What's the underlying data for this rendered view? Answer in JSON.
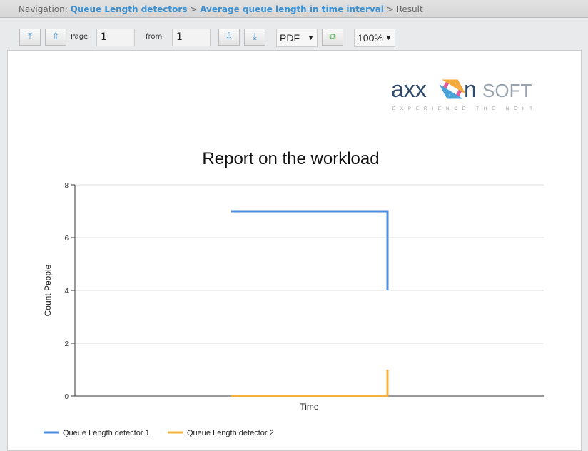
{
  "navigation": {
    "prefix": "Navigation:",
    "crumbs": [
      "Queue Length detectors",
      "Average queue length in time interval"
    ],
    "current": "Result",
    "sep": ">"
  },
  "toolbar": {
    "first_icon": "arrow-to-top-icon",
    "prev_icon": "arrow-up-icon",
    "page_label": "Page",
    "page_value": "1",
    "from_label": "from",
    "from_value": "1",
    "next_icon": "arrow-down-icon",
    "last_icon": "arrow-to-bottom-icon",
    "format": "PDF",
    "export_icon": "export-icon",
    "zoom": "100%",
    "first_glyph": "⤒",
    "prev_glyph": "⇧",
    "next_glyph": "⇩",
    "last_glyph": "⤓"
  },
  "logo": {
    "text_a": "axx",
    "text_b": "nSOFT",
    "tagline": "EXPERIENCE THE NEXT"
  },
  "chart_data": {
    "type": "line",
    "title": "Report on the workload",
    "xlabel": "Time",
    "ylabel": "Count People",
    "ylim": [
      0,
      8
    ],
    "yticks": [
      0,
      2,
      4,
      6,
      8
    ],
    "xlim": [
      0,
      3
    ],
    "grid": true,
    "legend": "bottom-left",
    "series": [
      {
        "name": "Queue Length detector 1",
        "color": "#4a8ee0",
        "points": [
          [
            1,
            7
          ],
          [
            2,
            7
          ],
          [
            2,
            4
          ]
        ]
      },
      {
        "name": "Queue Length detector 2",
        "color": "#f5b03c",
        "points": [
          [
            1,
            0
          ],
          [
            2,
            0
          ],
          [
            2,
            1
          ]
        ]
      }
    ]
  }
}
